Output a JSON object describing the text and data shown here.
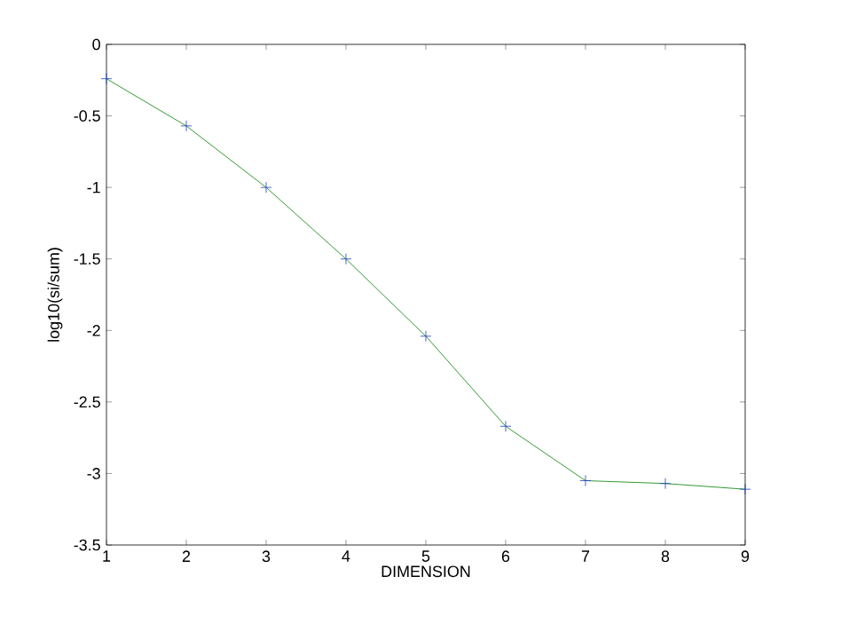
{
  "chart_data": {
    "type": "line",
    "xlabel": "DIMENSION",
    "ylabel": "log10(si/sum)",
    "x": [
      1,
      2,
      3,
      4,
      5,
      6,
      7,
      8,
      9
    ],
    "series": [
      {
        "color": "#008000",
        "values": [
          -0.24,
          -0.57,
          -1.0,
          -1.5,
          -2.04,
          -2.67,
          -3.05,
          -3.07,
          -3.11
        ]
      }
    ],
    "marker": "cross",
    "xlim": [
      1,
      9
    ],
    "xticks": [
      1,
      2,
      3,
      4,
      5,
      6,
      7,
      8,
      9
    ],
    "ylim": [
      -3.5,
      0
    ],
    "yticks": [
      -3.5,
      -3,
      -2.5,
      -2,
      -1.5,
      -1,
      -0.5,
      0
    ],
    "grid": false
  }
}
